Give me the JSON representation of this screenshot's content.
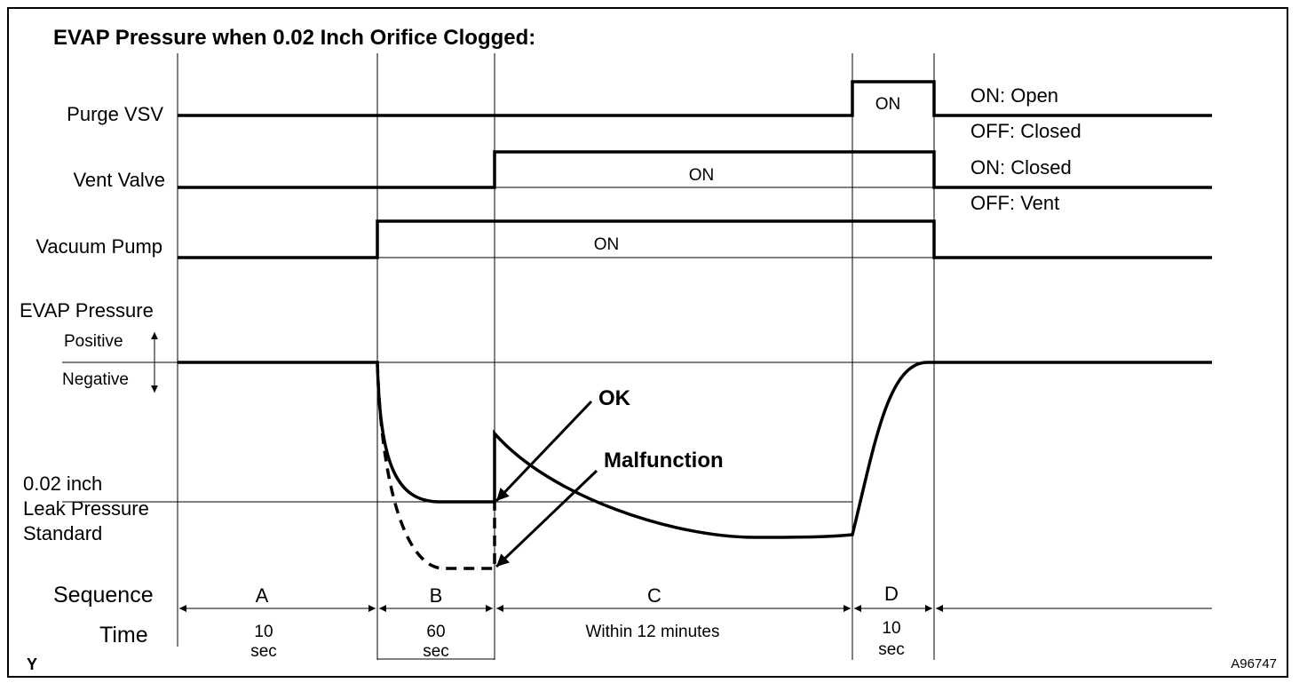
{
  "title": "EVAP Pressure when 0.02 Inch Orifice Clogged:",
  "signals": [
    {
      "label": "Purge VSV",
      "on": "ON",
      "legend": [
        "ON: Open",
        "OFF: Closed"
      ]
    },
    {
      "label": "Vent Valve",
      "on": "ON",
      "legend": [
        "ON: Closed",
        "OFF: Vent"
      ]
    },
    {
      "label": "Vacuum Pump",
      "on": "ON"
    }
  ],
  "pressure": {
    "label": "EVAP Pressure",
    "positive": "Positive",
    "negative": "Negative",
    "standard": [
      "0.02 inch",
      "Leak Pressure",
      "Standard"
    ],
    "ok": "OK",
    "malfunction": "Malfunction"
  },
  "sequence": {
    "label": "Sequence",
    "time_label": "Time",
    "phases": [
      {
        "name": "A",
        "time": [
          "10",
          "sec"
        ]
      },
      {
        "name": "B",
        "time": [
          "60",
          "sec"
        ]
      },
      {
        "name": "C",
        "time": [
          "Within 12 minutes"
        ]
      },
      {
        "name": "D",
        "time": [
          "10",
          "sec"
        ]
      }
    ]
  },
  "corner": "Y",
  "figure_id": "A96747"
}
